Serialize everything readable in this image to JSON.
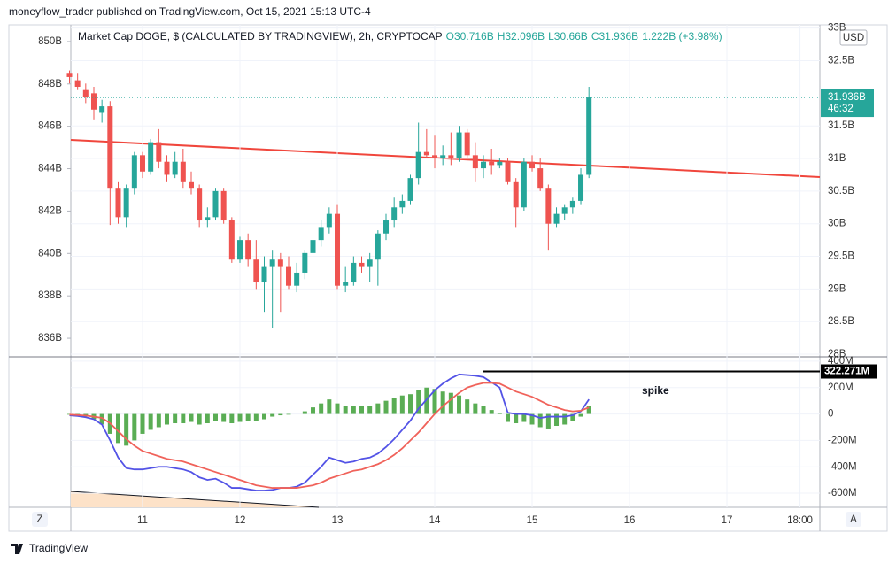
{
  "header": "moneyflow_trader published on TradingView.com, Oct 15, 2021 15:13 UTC-4",
  "footer": "TradingView",
  "buttons": [
    "Z",
    "A"
  ],
  "chart_data": [
    {
      "type": "candlestick",
      "title": "Market Cap DOGE, $ (CALCULATED BY TRADINGVIEW), 2h, CRYPTOCAP",
      "legend_values": [
        "O30.716B",
        "H32.096B",
        "L30.66B",
        "C31.936B",
        "1.222B (+3.98%)"
      ],
      "currency": "USD",
      "price_label": "31.936B",
      "countdown": "46:32",
      "up_color": "#26a69a",
      "down_color": "#ef5350",
      "x": [
        6,
        8,
        10,
        12,
        14,
        16,
        18,
        20,
        22,
        24,
        26,
        28,
        30,
        32,
        34,
        36,
        38,
        40,
        42,
        44,
        46,
        48,
        50,
        52,
        54,
        56,
        58,
        60,
        62,
        64,
        66,
        68,
        70,
        72,
        74,
        76,
        78,
        80,
        82,
        84,
        86,
        88,
        90,
        92,
        94,
        96,
        98,
        100,
        102,
        104,
        106,
        108,
        110,
        112,
        114,
        116,
        118,
        120,
        122,
        124,
        126,
        128,
        130,
        132,
        134
      ],
      "open": [
        32.3,
        32.2,
        32.05,
        32.0,
        31.7,
        31.8,
        30.55,
        30.1,
        30.55,
        31.05,
        30.8,
        31.25,
        30.95,
        30.75,
        30.95,
        30.65,
        30.55,
        30.05,
        30.1,
        30.5,
        30.05,
        29.45,
        29.75,
        29.45,
        29.1,
        29.35,
        29.45,
        29.35,
        29.05,
        29.25,
        29.55,
        29.75,
        29.95,
        30.15,
        29.05,
        29.1,
        29.4,
        29.35,
        29.45,
        29.85,
        30.05,
        30.25,
        30.35,
        30.7,
        31.1,
        31.05,
        31.0,
        31.05,
        31.0,
        31.4,
        31.05,
        30.85,
        30.95,
        30.9,
        30.95,
        30.65,
        30.25,
        30.95,
        30.85,
        30.55,
        30.0,
        30.15,
        30.25,
        30.35,
        30.75
      ],
      "high": [
        32.35,
        32.3,
        32.15,
        32.1,
        31.9,
        31.88,
        30.65,
        30.6,
        31.1,
        31.1,
        31.3,
        31.45,
        31.05,
        31.1,
        31.15,
        30.8,
        30.6,
        30.25,
        30.55,
        30.55,
        30.1,
        29.8,
        29.85,
        29.75,
        29.5,
        29.6,
        29.55,
        29.5,
        29.4,
        29.6,
        29.85,
        30.05,
        30.25,
        30.3,
        29.35,
        29.5,
        29.5,
        29.55,
        29.9,
        30.15,
        30.4,
        30.45,
        30.75,
        31.55,
        31.45,
        31.35,
        31.2,
        31.4,
        31.5,
        31.45,
        31.25,
        31.05,
        31.15,
        31.0,
        31.0,
        30.7,
        31.0,
        31.05,
        31.0,
        30.6,
        30.25,
        30.3,
        30.4,
        30.85,
        32.1
      ],
      "low": [
        32.15,
        32.05,
        31.85,
        31.6,
        31.55,
        29.98,
        30.0,
        29.95,
        30.45,
        30.7,
        30.75,
        30.85,
        30.65,
        30.7,
        30.55,
        30.45,
        29.95,
        29.95,
        30.05,
        30.0,
        29.4,
        29.4,
        29.35,
        29.0,
        28.65,
        28.4,
        28.65,
        29.0,
        28.95,
        29.15,
        29.45,
        29.65,
        29.85,
        29.0,
        28.95,
        29.05,
        29.25,
        29.1,
        29.05,
        29.75,
        29.95,
        30.15,
        30.3,
        30.6,
        31.0,
        30.85,
        30.9,
        30.9,
        30.95,
        31.0,
        30.65,
        30.7,
        30.75,
        30.85,
        30.6,
        29.95,
        30.2,
        30.8,
        30.5,
        29.6,
        29.95,
        30.05,
        30.15,
        30.3,
        30.7
      ],
      "close": [
        32.25,
        32.1,
        31.95,
        31.75,
        31.8,
        30.55,
        30.1,
        30.55,
        31.05,
        30.8,
        31.25,
        30.95,
        30.75,
        30.95,
        30.65,
        30.55,
        30.05,
        30.1,
        30.5,
        30.05,
        29.45,
        29.75,
        29.45,
        29.1,
        29.35,
        29.45,
        29.35,
        29.05,
        29.25,
        29.55,
        29.75,
        29.95,
        30.15,
        29.05,
        29.1,
        29.4,
        29.35,
        29.45,
        29.85,
        30.05,
        30.25,
        30.35,
        30.7,
        31.1,
        31.05,
        31.0,
        31.05,
        31.0,
        31.4,
        31.05,
        30.85,
        30.95,
        30.9,
        30.95,
        30.65,
        30.25,
        30.95,
        30.85,
        30.55,
        30.0,
        30.15,
        30.25,
        30.35,
        30.75,
        31.936
      ],
      "xlim": [
        6.33,
        190.9
      ],
      "xticks": [
        {
          "value": 24,
          "label": "11"
        },
        {
          "value": 48,
          "label": "12"
        },
        {
          "value": 72,
          "label": "13"
        },
        {
          "value": 96,
          "label": "14"
        },
        {
          "value": 120,
          "label": "15"
        },
        {
          "value": 144,
          "label": "16"
        },
        {
          "value": 168,
          "label": "17"
        },
        {
          "value": 186,
          "label": "18:00"
        }
      ],
      "ylim": [
        27.96,
        33.05
      ],
      "yticks": [
        {
          "value": 33,
          "label": "33B"
        },
        {
          "value": 32.5,
          "label": "32.5B"
        },
        {
          "value": 31.5,
          "label": "31.5B"
        },
        {
          "value": 31,
          "label": "31B"
        },
        {
          "value": 30.5,
          "label": "30.5B"
        },
        {
          "value": 30,
          "label": "30B"
        },
        {
          "value": 29.5,
          "label": "29.5B"
        },
        {
          "value": 29,
          "label": "29B"
        },
        {
          "value": 28.5,
          "label": "28.5B"
        },
        {
          "value": 28,
          "label": "28B"
        }
      ],
      "y2lim": [
        835.125,
        850.79
      ],
      "y2ticks": [
        {
          "value": 850,
          "label": "850B"
        },
        {
          "value": 848,
          "label": "848B"
        },
        {
          "value": 846,
          "label": "846B"
        },
        {
          "value": 844,
          "label": "844B"
        },
        {
          "value": 842,
          "label": "842B"
        },
        {
          "value": 840,
          "label": "840B"
        },
        {
          "value": 838,
          "label": "838B"
        },
        {
          "value": 836,
          "label": "836B"
        }
      ],
      "grid": true
    },
    {
      "type": "macd",
      "annotations": [
        "spike"
      ],
      "level": 322.271,
      "level_label": "322.271M",
      "ylim": [
        -707,
        433
      ],
      "yticks": [
        {
          "value": 400,
          "label": "400M"
        },
        {
          "value": 200,
          "label": "200M"
        },
        0,
        {
          "value": -200,
          "label": "-200M"
        },
        {
          "value": -400,
          "label": "-400M"
        },
        {
          "value": -600,
          "label": "-600M"
        }
      ],
      "series": [
        {
          "type": "bar",
          "color": "#5aad54",
          "values": [
            -5,
            -10,
            -20,
            -40,
            -80,
            -150,
            -220,
            -240,
            -200,
            -150,
            -120,
            -100,
            -80,
            -70,
            -70,
            -60,
            -80,
            -70,
            -50,
            -60,
            -70,
            -60,
            -50,
            -50,
            -40,
            -20,
            -10,
            -5,
            0,
            20,
            50,
            80,
            110,
            80,
            60,
            60,
            60,
            60,
            80,
            100,
            120,
            140,
            150,
            180,
            200,
            190,
            170,
            160,
            140,
            110,
            80,
            60,
            30,
            10,
            -60,
            -70,
            -60,
            -80,
            -100,
            -110,
            -90,
            -80,
            -50,
            -20,
            60
          ]
        },
        {
          "type": "line",
          "color": "#5353e6",
          "values": [
            -10,
            -15,
            -25,
            -40,
            -80,
            -200,
            -330,
            -410,
            -420,
            -420,
            -410,
            -400,
            -400,
            -410,
            -420,
            -440,
            -480,
            -500,
            -490,
            -520,
            -560,
            -560,
            -570,
            -580,
            -580,
            -575,
            -560,
            -560,
            -550,
            -520,
            -460,
            -400,
            -330,
            -350,
            -370,
            -360,
            -340,
            -330,
            -300,
            -250,
            -190,
            -120,
            -50,
            40,
            110,
            180,
            230,
            270,
            300,
            295,
            290,
            280,
            240,
            200,
            10,
            0,
            0,
            -10,
            -30,
            -20,
            -20,
            -20,
            -10,
            20,
            110
          ]
        },
        {
          "type": "line",
          "color": "#f0625a",
          "values": [
            -5,
            -8,
            -12,
            -20,
            -30,
            -70,
            -130,
            -190,
            -240,
            -280,
            -300,
            -320,
            -340,
            -350,
            -360,
            -380,
            -400,
            -420,
            -440,
            -460,
            -480,
            -500,
            -520,
            -540,
            -550,
            -560,
            -560,
            -560,
            -560,
            -550,
            -540,
            -520,
            -490,
            -470,
            -450,
            -430,
            -420,
            -400,
            -380,
            -350,
            -310,
            -260,
            -200,
            -140,
            -70,
            0,
            60,
            110,
            160,
            200,
            220,
            235,
            235,
            230,
            200,
            170,
            150,
            130,
            100,
            70,
            50,
            30,
            20,
            25,
            50
          ]
        }
      ]
    }
  ]
}
